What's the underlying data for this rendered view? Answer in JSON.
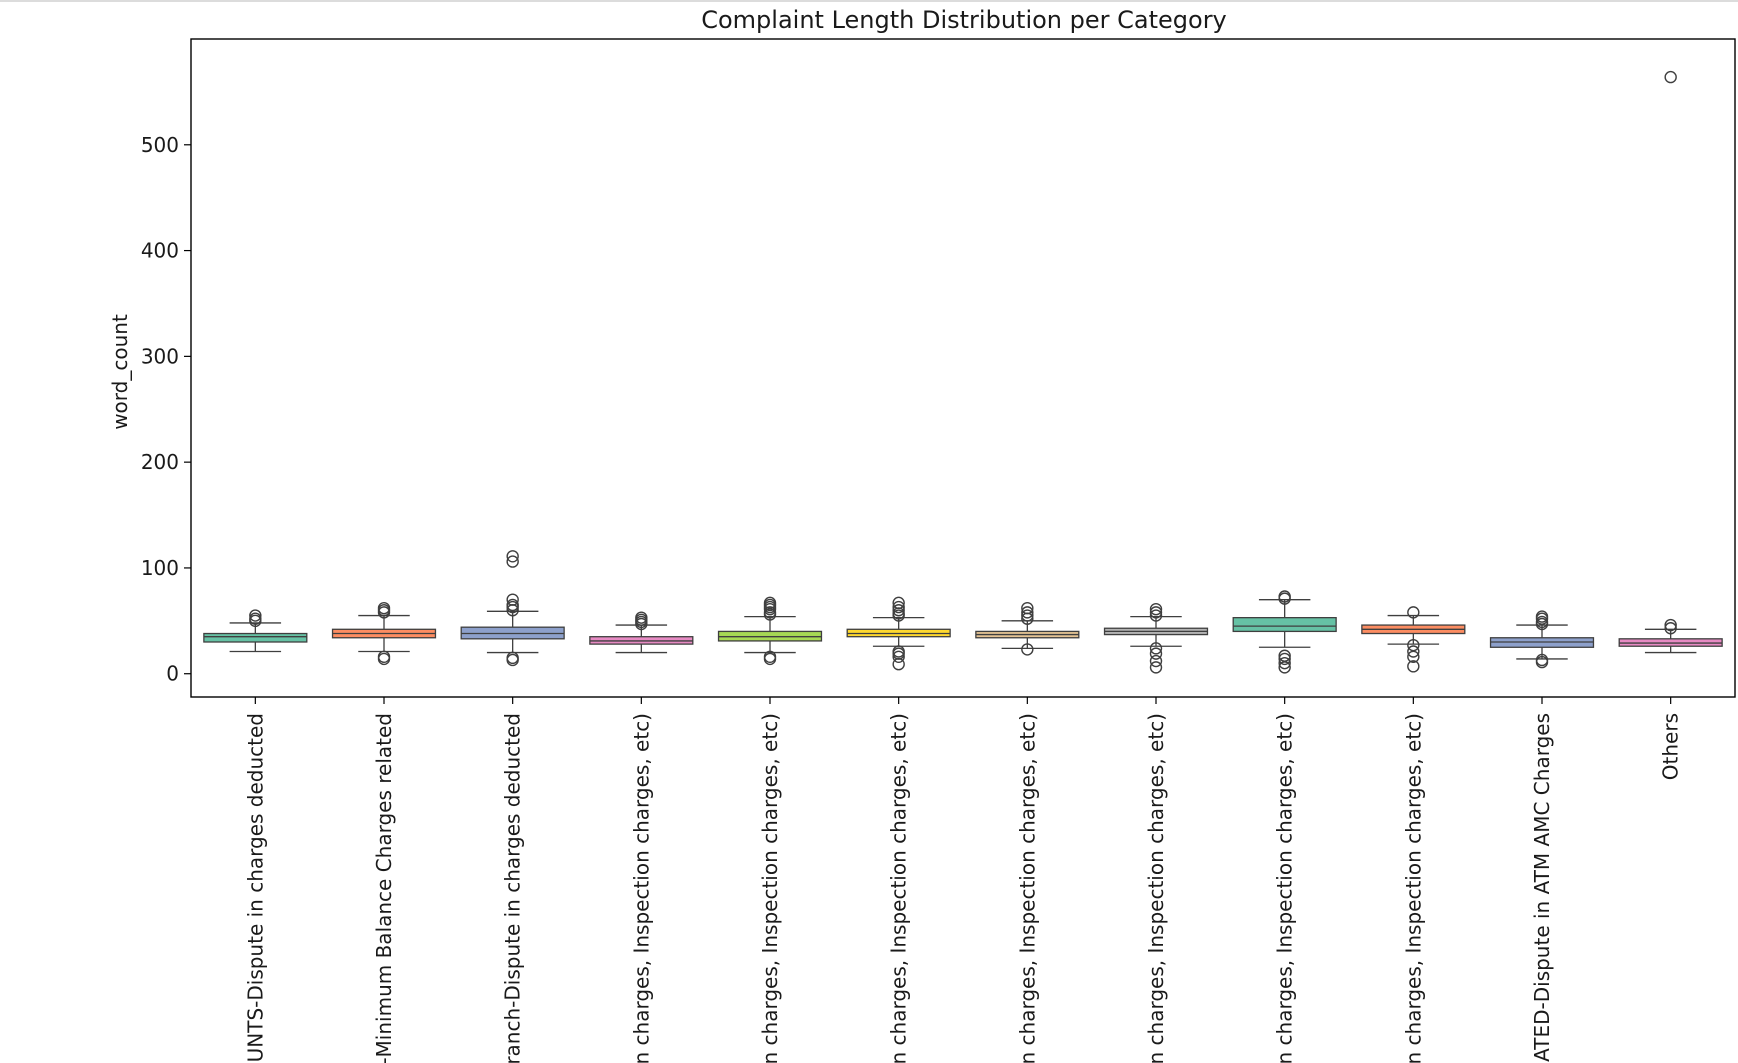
{
  "chart_data": {
    "type": "box",
    "title": "Complaint Length Distribution per Category",
    "xlabel": "",
    "ylabel": "word_count",
    "ylim": [
      -22,
      600
    ],
    "yticks": [
      0,
      100,
      200,
      300,
      400,
      500
    ],
    "grid": false,
    "legend": "none",
    "categories": [
      "OUNTS-Dispute in charges deducted",
      "-Minimum Balance Charges related",
      "ranch-Dispute in charges deducted",
      "n charges, Inspection charges, etc)",
      "n charges, Inspection charges, etc)",
      "n charges, Inspection charges, etc)",
      "n charges, Inspection charges, etc)",
      "n charges, Inspection charges, etc)",
      "n charges, Inspection charges, etc)",
      "n charges, Inspection charges, etc)",
      "ATED-Dispute in ATM AMC Charges",
      "Others"
    ],
    "colors": [
      "#66c2a5",
      "#fc8d62",
      "#8da0cb",
      "#e78ac3",
      "#a6d854",
      "#ffd92f",
      "#e5c494",
      "#b3b3b3",
      "#66c2a5",
      "#fc8d62",
      "#8da0cb",
      "#e78ac3"
    ],
    "boxes": [
      {
        "whisker_low": 21,
        "q1": 30,
        "median": 35,
        "q3": 38,
        "whisker_high": 48,
        "outliers": [
          50,
          52,
          55
        ]
      },
      {
        "whisker_low": 21,
        "q1": 34,
        "median": 38,
        "q3": 42,
        "whisker_high": 55,
        "outliers": [
          14,
          16,
          58,
          60,
          62
        ]
      },
      {
        "whisker_low": 20,
        "q1": 33,
        "median": 38,
        "q3": 44,
        "whisker_high": 59,
        "outliers": [
          13,
          15,
          60,
          63,
          65,
          70,
          106,
          111
        ]
      },
      {
        "whisker_low": 20,
        "q1": 28,
        "median": 31,
        "q3": 35,
        "whisker_high": 46,
        "outliers": [
          47,
          49,
          51,
          53
        ]
      },
      {
        "whisker_low": 20,
        "q1": 31,
        "median": 35,
        "q3": 40,
        "whisker_high": 54,
        "outliers": [
          14,
          16,
          56,
          58,
          61,
          63,
          65,
          67
        ]
      },
      {
        "whisker_low": 26,
        "q1": 35,
        "median": 38,
        "q3": 42,
        "whisker_high": 53,
        "outliers": [
          9,
          16,
          19,
          21,
          55,
          57,
          60,
          63,
          67
        ]
      },
      {
        "whisker_low": 24,
        "q1": 34,
        "median": 37,
        "q3": 40,
        "whisker_high": 50,
        "outliers": [
          23,
          52,
          55,
          58,
          62
        ]
      },
      {
        "whisker_low": 26,
        "q1": 37,
        "median": 40,
        "q3": 43,
        "whisker_high": 54,
        "outliers": [
          6,
          12,
          19,
          24,
          55,
          58,
          61
        ]
      },
      {
        "whisker_low": 25,
        "q1": 40,
        "median": 45,
        "q3": 53,
        "whisker_high": 70,
        "outliers": [
          6,
          10,
          14,
          17,
          71,
          73
        ]
      },
      {
        "whisker_low": 28,
        "q1": 38,
        "median": 42,
        "q3": 46,
        "whisker_high": 55,
        "outliers": [
          7,
          16,
          21,
          27,
          58
        ]
      },
      {
        "whisker_low": 14,
        "q1": 25,
        "median": 30,
        "q3": 34,
        "whisker_high": 46,
        "outliers": [
          11,
          13,
          47,
          49,
          52,
          54
        ]
      },
      {
        "whisker_low": 20,
        "q1": 26,
        "median": 29,
        "q3": 33,
        "whisker_high": 42,
        "outliers": [
          43,
          46,
          564
        ]
      }
    ]
  }
}
